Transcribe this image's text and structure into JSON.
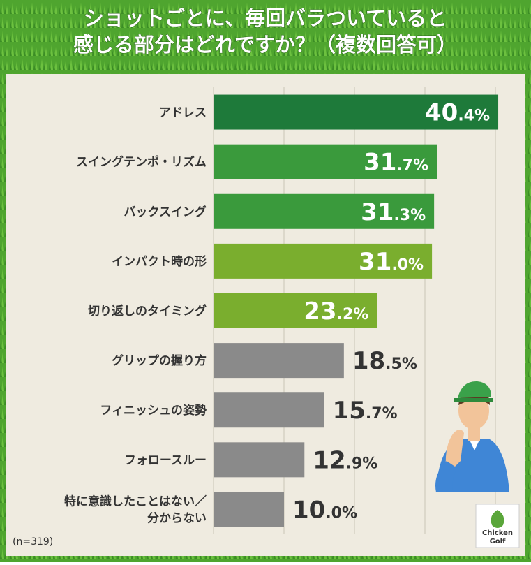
{
  "chart_data": {
    "type": "bar",
    "orientation": "horizontal",
    "title": "ショットごとに、毎回バラついていると\n感じる部分はどれですか？（複数回答可）",
    "categories": [
      "アドレス",
      "スイングテンポ・リズム",
      "バックスイング",
      "インパクト時の形",
      "切り返しのタイミング",
      "グリップの握り方",
      "フィニッシュの姿勢",
      "フォロースルー",
      "特に意識したことはない／\n分からない"
    ],
    "values": [
      40.4,
      31.7,
      31.3,
      31.0,
      23.2,
      18.5,
      15.7,
      12.9,
      10.0
    ],
    "value_labels": [
      "40.4%",
      "31.7%",
      "31.3%",
      "31.0%",
      "23.2%",
      "18.5%",
      "15.7%",
      "12.9%",
      "10.0%"
    ],
    "colors": [
      "#1e7a3a",
      "#3a9a3c",
      "#3a9a3c",
      "#7aae2e",
      "#7aae2e",
      "#8a8a8a",
      "#8a8a8a",
      "#8a8a8a",
      "#8a8a8a"
    ],
    "xlim": [
      0,
      40
    ],
    "xticks": [
      0,
      10,
      20,
      30,
      40
    ],
    "grid": true,
    "note": "(n=319)"
  },
  "logo": {
    "line1": "Chicken",
    "line2": "Golf"
  }
}
